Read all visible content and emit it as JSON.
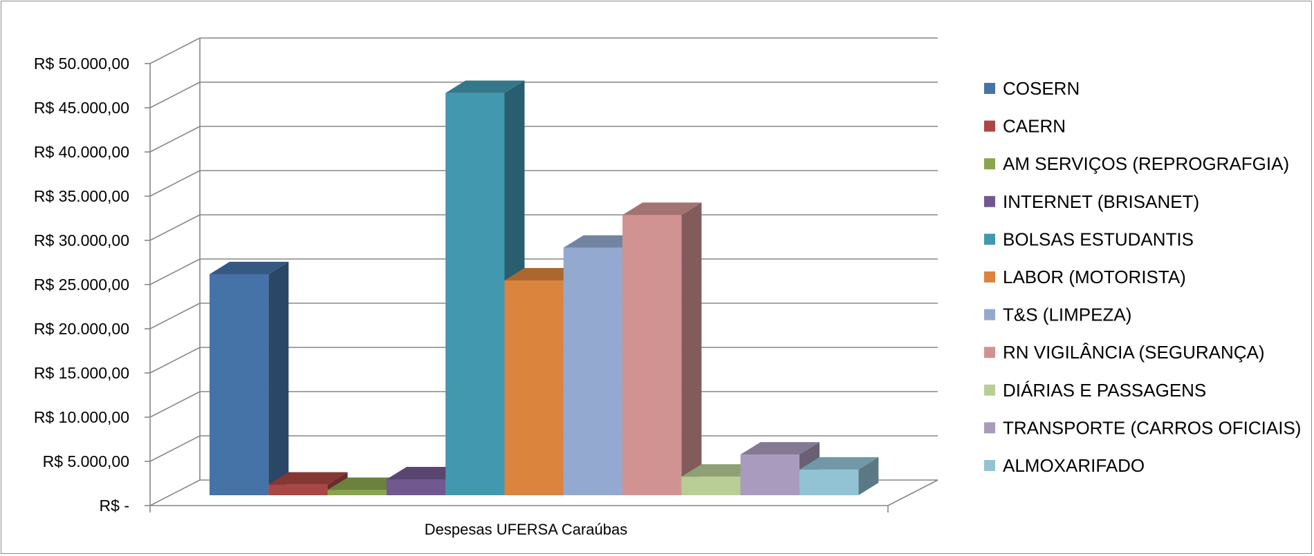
{
  "chart_data": {
    "type": "bar",
    "title": "",
    "xlabel": "",
    "ylabel": "",
    "categories": [
      "Despesas UFERSA Caraúbas"
    ],
    "y_ticks": [
      "R$ -",
      "R$ 5.000,00",
      "R$ 10.000,00",
      "R$ 15.000,00",
      "R$ 20.000,00",
      "R$ 25.000,00",
      "R$ 30.000,00",
      "R$ 35.000,00",
      "R$ 40.000,00",
      "R$ 45.000,00",
      "R$ 50.000,00"
    ],
    "ylim": [
      0,
      50000
    ],
    "grid": true,
    "legend_position": "right",
    "three_d": true,
    "series": [
      {
        "name": "COSERN",
        "values": [
          25000
        ],
        "color": "#4572a7"
      },
      {
        "name": "CAERN",
        "values": [
          1200
        ],
        "color": "#aa4643"
      },
      {
        "name": "AM SERVIÇOS (REPROGRAFGIA)",
        "values": [
          600
        ],
        "color": "#89a54e"
      },
      {
        "name": "INTERNET (BRISANET)",
        "values": [
          1800
        ],
        "color": "#71588f"
      },
      {
        "name": "BOLSAS ESTUDANTIS",
        "values": [
          45500
        ],
        "color": "#4198af"
      },
      {
        "name": "LABOR (MOTORISTA)",
        "values": [
          24300
        ],
        "color": "#db843d"
      },
      {
        "name": "T&S (LIMPEZA)",
        "values": [
          28000
        ],
        "color": "#93a9cf"
      },
      {
        "name": "RN VIGILÂNCIA (SEGURANÇA)",
        "values": [
          31700
        ],
        "color": "#d19392"
      },
      {
        "name": "DIÁRIAS E PASSAGENS",
        "values": [
          2100
        ],
        "color": "#b9cd96"
      },
      {
        "name": "TRANSPORTE (CARROS OFICIAIS)",
        "values": [
          4600
        ],
        "color": "#a99bbd"
      },
      {
        "name": "ALMOXARIFADO",
        "values": [
          2900
        ],
        "color": "#91c3d5"
      }
    ]
  }
}
